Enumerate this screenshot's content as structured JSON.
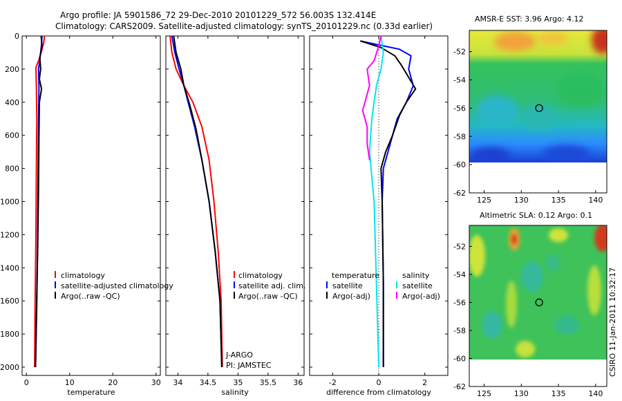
{
  "chart_data": [
    {
      "type": "line",
      "title_line1": "Argo profile: JA 5901586_72 29-Dec-2010 20101229_572 56.003S 132.414E",
      "title_line2": "Climatology: CARS2009. Satellite-adjusted climatology: synTS_20101229.nc (0.33d earlier)",
      "xlabel": "temperature",
      "xlim": [
        -1,
        31
      ],
      "ylim": [
        0,
        2050
      ],
      "y_inverted": true,
      "xticks": [
        0,
        10,
        20,
        30
      ],
      "yticks": [
        0,
        200,
        400,
        600,
        800,
        1000,
        1200,
        1400,
        1600,
        1800,
        2000
      ],
      "legend": [
        "climatology",
        "satellite-adjusted climatology",
        "Argo(..raw -QC)"
      ],
      "series": [
        {
          "name": "climatology",
          "color": "#ff0000",
          "points": [
            [
              4.2,
              0
            ],
            [
              4.0,
              40
            ],
            [
              3.4,
              100
            ],
            [
              2.8,
              150
            ],
            [
              2.2,
              190
            ],
            [
              2.3,
              300
            ],
            [
              2.4,
              500
            ],
            [
              2.3,
              800
            ],
            [
              2.2,
              1200
            ],
            [
              2.0,
              1600
            ],
            [
              1.9,
              2000
            ]
          ]
        },
        {
          "name": "satellite-adjusted climatology",
          "color": "#0000ff",
          "points": [
            [
              3.6,
              0
            ],
            [
              3.5,
              50
            ],
            [
              3.2,
              120
            ],
            [
              2.8,
              200
            ],
            [
              2.9,
              300
            ],
            [
              2.8,
              500
            ],
            [
              2.7,
              800
            ],
            [
              2.6,
              1200
            ],
            [
              2.4,
              1600
            ],
            [
              2.1,
              2000
            ]
          ]
        },
        {
          "name": "Argo(..raw -QC)",
          "color": "#000000",
          "points": [
            [
              3.4,
              0
            ],
            [
              3.6,
              60
            ],
            [
              3.1,
              130
            ],
            [
              3.3,
              200
            ],
            [
              3.0,
              260
            ],
            [
              3.5,
              320
            ],
            [
              3.0,
              400
            ],
            [
              2.9,
              600
            ],
            [
              2.8,
              900
            ],
            [
              2.6,
              1300
            ],
            [
              2.3,
              1700
            ],
            [
              2.1,
              2000
            ]
          ]
        }
      ]
    },
    {
      "type": "line",
      "xlabel": "salinity",
      "xlim": [
        33.8,
        36.1
      ],
      "ylim": [
        0,
        2050
      ],
      "y_inverted": true,
      "xticks": [
        34,
        34.5,
        35,
        35.5,
        36
      ],
      "yticks": [
        0,
        200,
        400,
        600,
        800,
        1000,
        1200,
        1400,
        1600,
        1800,
        2000
      ],
      "legend": [
        "climatology",
        "satellite adj. clim.",
        "Argo(..raw -QC)"
      ],
      "annotation": [
        "J-ARGO",
        "PI: JAMSTEC"
      ],
      "series": [
        {
          "name": "climatology",
          "color": "#ff0000",
          "points": [
            [
              33.87,
              0
            ],
            [
              33.9,
              100
            ],
            [
              33.97,
              200
            ],
            [
              34.1,
              300
            ],
            [
              34.25,
              400
            ],
            [
              34.4,
              550
            ],
            [
              34.52,
              750
            ],
            [
              34.6,
              1000
            ],
            [
              34.67,
              1300
            ],
            [
              34.72,
              1600
            ],
            [
              34.74,
              2000
            ]
          ]
        },
        {
          "name": "satellite adj. clim.",
          "color": "#0000ff",
          "points": [
            [
              33.9,
              0
            ],
            [
              33.95,
              100
            ],
            [
              34.02,
              200
            ],
            [
              34.1,
              300
            ],
            [
              34.17,
              400
            ],
            [
              34.28,
              550
            ],
            [
              34.4,
              750
            ],
            [
              34.52,
              1000
            ],
            [
              34.62,
              1300
            ],
            [
              34.7,
              1600
            ],
            [
              34.73,
              2000
            ]
          ]
        },
        {
          "name": "Argo(..raw -QC)",
          "color": "#000000",
          "points": [
            [
              33.93,
              0
            ],
            [
              33.97,
              100
            ],
            [
              34.05,
              200
            ],
            [
              34.1,
              300
            ],
            [
              34.2,
              420
            ],
            [
              34.3,
              560
            ],
            [
              34.4,
              750
            ],
            [
              34.52,
              1000
            ],
            [
              34.62,
              1300
            ],
            [
              34.7,
              1600
            ],
            [
              34.73,
              2000
            ]
          ]
        }
      ]
    },
    {
      "type": "line",
      "xlabel": "difference from climatology",
      "xlim": [
        -3,
        3
      ],
      "ylim": [
        0,
        2050
      ],
      "y_inverted": true,
      "xticks": [
        -2,
        0,
        2
      ],
      "yticks": [
        0,
        200,
        400,
        600,
        800,
        1000,
        1200,
        1400,
        1600,
        1800,
        2000
      ],
      "legend_headers": [
        "temperature",
        "salinity"
      ],
      "legend_left": [
        "satellite",
        "Argo(-adj)"
      ],
      "legend_right": [
        "satellite",
        "Argo(-adj)"
      ],
      "series": [
        {
          "name": "temperature satellite",
          "color": "#0000ff",
          "points": [
            [
              -0.8,
              30
            ],
            [
              0.2,
              60
            ],
            [
              0.9,
              80
            ],
            [
              1.4,
              120
            ],
            [
              1.3,
              200
            ],
            [
              1.5,
              300
            ],
            [
              1.2,
              400
            ],
            [
              0.8,
              500
            ],
            [
              0.5,
              650
            ],
            [
              0.2,
              800
            ],
            [
              0.15,
              1000
            ],
            [
              0.2,
              1500
            ],
            [
              0.2,
              2000
            ]
          ]
        },
        {
          "name": "temperature Argo(-adj)",
          "color": "#000000",
          "points": [
            [
              -0.8,
              30
            ],
            [
              0.1,
              70
            ],
            [
              0.7,
              120
            ],
            [
              1.0,
              180
            ],
            [
              1.3,
              250
            ],
            [
              1.6,
              320
            ],
            [
              1.2,
              400
            ],
            [
              0.9,
              480
            ],
            [
              0.6,
              600
            ],
            [
              0.3,
              700
            ],
            [
              0.1,
              800
            ],
            [
              0.15,
              1000
            ],
            [
              0.2,
              1500
            ],
            [
              0.2,
              2000
            ]
          ]
        },
        {
          "name": "salinity satellite",
          "color": "#00e5ee",
          "points": [
            [
              0.1,
              0
            ],
            [
              0.2,
              100
            ],
            [
              0.1,
              200
            ],
            [
              -0.1,
              300
            ],
            [
              -0.3,
              500
            ],
            [
              -0.4,
              700
            ],
            [
              -0.2,
              1000
            ],
            [
              -0.1,
              1500
            ],
            [
              0.0,
              2000
            ]
          ]
        },
        {
          "name": "salinity Argo(-adj)",
          "color": "#ff00ff",
          "points": [
            [
              0.1,
              0
            ],
            [
              0.0,
              60
            ],
            [
              -0.2,
              150
            ],
            [
              -0.5,
              200
            ],
            [
              -0.4,
              300
            ],
            [
              -0.7,
              450
            ],
            [
              -0.5,
              550
            ],
            [
              -0.5,
              650
            ],
            [
              -0.4,
              750
            ]
          ]
        }
      ]
    },
    {
      "type": "heatmap",
      "title": "AMSR-E SST: 3.96 Argo: 4.12",
      "xlim": [
        123,
        141.5
      ],
      "ylim": [
        -62,
        -50.5
      ],
      "xticks": [
        125,
        130,
        135,
        140
      ],
      "yticks": [
        -52,
        -54,
        -56,
        -58,
        -60,
        -62
      ],
      "marker": [
        132.4,
        -56.0
      ]
    },
    {
      "type": "heatmap",
      "title": "Altimetric SLA: 0.12 Argo: 0.1",
      "xlim": [
        123,
        141.5
      ],
      "ylim": [
        -62,
        -50.5
      ],
      "xticks": [
        125,
        130,
        135,
        140
      ],
      "yticks": [
        -52,
        -54,
        -56,
        -58,
        -60,
        -62
      ],
      "marker": [
        132.4,
        -56.0
      ]
    }
  ],
  "side_label": "CSIRO 11-Jan-2011 10:32:17"
}
